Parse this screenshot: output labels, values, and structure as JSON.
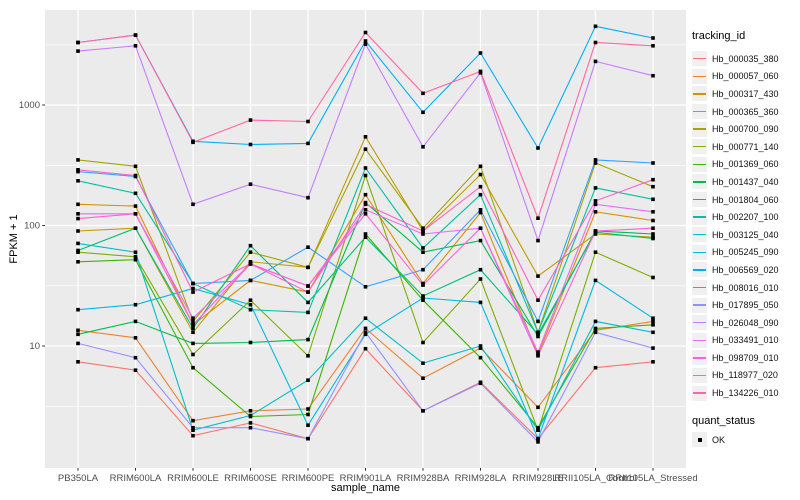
{
  "chart_data": {
    "type": "line",
    "title": "",
    "xlabel": "sample_name",
    "ylabel": "FPKM + 1",
    "y_scale": "log10",
    "ylim": [
      0.93,
      6100
    ],
    "grid": true,
    "legend_position": "right",
    "legend_tracking_title": "tracking_id",
    "quant_status": {
      "title": "quant_status",
      "label": "OK"
    },
    "y_ticks": [
      10,
      100,
      1000
    ],
    "y_tick_labels": [
      "10",
      "100",
      "1000"
    ],
    "y_minor_ticks": [
      3.162,
      31.62,
      316.2,
      3162
    ],
    "x": [
      "PB350LA",
      "RRIM600LA",
      "RRIM600LE",
      "RRIM600SE",
      "RRIM600PE",
      "RRIM901LA",
      "RRIM928BA",
      "RRIM928LA",
      "RRIM928LE",
      "RRII105LA_Control",
      "RRII105LA_Stressed"
    ],
    "colors": {
      "panel_bg": "#EBEBEB",
      "grid": "#FFFFFF",
      "axis_text": "#4D4D4D",
      "tick_mark": "#333333",
      "point": "#000000"
    },
    "series": [
      {
        "name": "Hb_000035_380",
        "color": "#F8766D",
        "values": [
          7.4,
          6.3,
          1.8,
          2.3,
          1.7,
          9.5,
          2.9,
          5.0,
          1.7,
          6.6,
          7.4
        ]
      },
      {
        "name": "Hb_000057_060",
        "color": "#EA8331",
        "values": [
          13.5,
          11.7,
          2.4,
          2.9,
          3.0,
          14,
          5.4,
          9.6,
          3.1,
          13.5,
          16
        ]
      },
      {
        "name": "Hb_000317_430",
        "color": "#D89000",
        "values": [
          150,
          145,
          15,
          35,
          28,
          180,
          33,
          128,
          8.5,
          130,
          110
        ]
      },
      {
        "name": "Hb_000365_360",
        "color": "#C09B00",
        "values": [
          90,
          95,
          13,
          50,
          45,
          545,
          90,
          265,
          38,
          85,
          80
        ]
      },
      {
        "name": "Hb_000700_090",
        "color": "#A3A500",
        "values": [
          350,
          310,
          16,
          60,
          45,
          430,
          95,
          310,
          13,
          330,
          210
        ]
      },
      {
        "name": "Hb_000771_140",
        "color": "#7CAE00",
        "values": [
          60,
          55,
          8.5,
          24,
          8.3,
          260,
          10.7,
          36,
          2.0,
          60,
          37
        ]
      },
      {
        "name": "Hb_001369_060",
        "color": "#39B600",
        "values": [
          50,
          52,
          6.6,
          2.6,
          2.7,
          85,
          24,
          8.0,
          2.1,
          14,
          15
        ]
      },
      {
        "name": "Hb_001437_040",
        "color": "#00BB4E",
        "values": [
          12.5,
          16,
          10.5,
          10.7,
          11.3,
          155,
          60,
          75,
          12,
          90,
          85
        ]
      },
      {
        "name": "Hb_001804_060",
        "color": "#00BF7D",
        "values": [
          62,
          95,
          14,
          68,
          23,
          80,
          26,
          43,
          12.5,
          88,
          78
        ]
      },
      {
        "name": "Hb_002207_100",
        "color": "#00C1A3",
        "values": [
          235,
          185,
          33,
          20,
          19,
          300,
          65,
          180,
          13,
          205,
          165
        ]
      },
      {
        "name": "Hb_003125_040",
        "color": "#00BFC4",
        "values": [
          71,
          60,
          2.0,
          2.65,
          5.2,
          17,
          7.2,
          10,
          2.0,
          16,
          13
        ]
      },
      {
        "name": "Hb_005245_090",
        "color": "#00BAE0",
        "values": [
          20,
          22,
          30,
          22,
          2.2,
          12.5,
          25,
          23,
          1.7,
          35,
          17
        ]
      },
      {
        "name": "Hb_006569_020",
        "color": "#00B0F6",
        "values": [
          3300,
          3800,
          500,
          470,
          480,
          3400,
          870,
          2700,
          440,
          4500,
          3600
        ]
      },
      {
        "name": "Hb_008016_010",
        "color": "#35A2FF",
        "values": [
          280,
          255,
          33,
          35,
          66,
          31,
          43,
          135,
          16,
          350,
          330
        ]
      },
      {
        "name": "Hb_017895_050",
        "color": "#9590FF",
        "values": [
          10.5,
          8.0,
          2.1,
          2.1,
          1.7,
          13,
          2.9,
          4.9,
          1.6,
          13,
          9.6
        ]
      },
      {
        "name": "Hb_026048_090",
        "color": "#C77CFF",
        "values": [
          2800,
          3100,
          150,
          220,
          170,
          3200,
          450,
          1850,
          75,
          2300,
          1750
        ]
      },
      {
        "name": "Hb_033491_010",
        "color": "#E76BF3",
        "values": [
          125,
          125,
          17,
          48,
          31.5,
          135,
          85,
          95,
          8.9,
          150,
          130
        ]
      },
      {
        "name": "Hb_098709_010",
        "color": "#FA62DB",
        "values": [
          114,
          125,
          15,
          48,
          31.5,
          125,
          32,
          95,
          8.3,
          90,
          95
        ]
      },
      {
        "name": "Hb_118977_020",
        "color": "#FF61C3",
        "values": [
          290,
          260,
          28,
          48,
          28,
          150,
          90,
          210,
          24,
          160,
          240
        ]
      },
      {
        "name": "Hb_134226_010",
        "color": "#FF67A4",
        "values": [
          3300,
          3800,
          490,
          750,
          730,
          4000,
          1250,
          1900,
          115,
          3300,
          3100
        ]
      }
    ]
  }
}
